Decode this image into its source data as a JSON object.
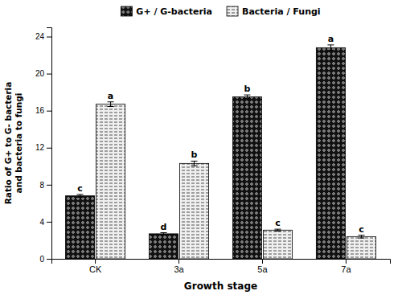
{
  "chart_data": {
    "type": "bar",
    "categories": [
      "CK",
      "3a",
      "5a",
      "7a"
    ],
    "series": [
      {
        "name": "G+ / G-bacteria",
        "color": "#111111",
        "values": [
          6.8,
          2.7,
          17.5,
          22.8
        ],
        "errors": [
          0.15,
          0.12,
          0.2,
          0.3
        ],
        "letters": [
          "c",
          "d",
          "b",
          "a"
        ]
      },
      {
        "name": "Bacteria /  Fungi",
        "color": "#f0f0f0",
        "values": [
          16.7,
          10.3,
          3.1,
          2.4
        ],
        "errors": [
          0.25,
          0.25,
          0.1,
          0.15
        ],
        "letters": [
          "a",
          "b",
          "c",
          "c"
        ]
      }
    ],
    "x_label": "Growth stage",
    "y_label": "Ratio of G+ to G- bacteria\nand bacteria to fungi",
    "ylim": [
      0,
      25
    ],
    "yticks": [
      0,
      4,
      8,
      12,
      16,
      20,
      24
    ],
    "grid": false,
    "legend": "top"
  }
}
